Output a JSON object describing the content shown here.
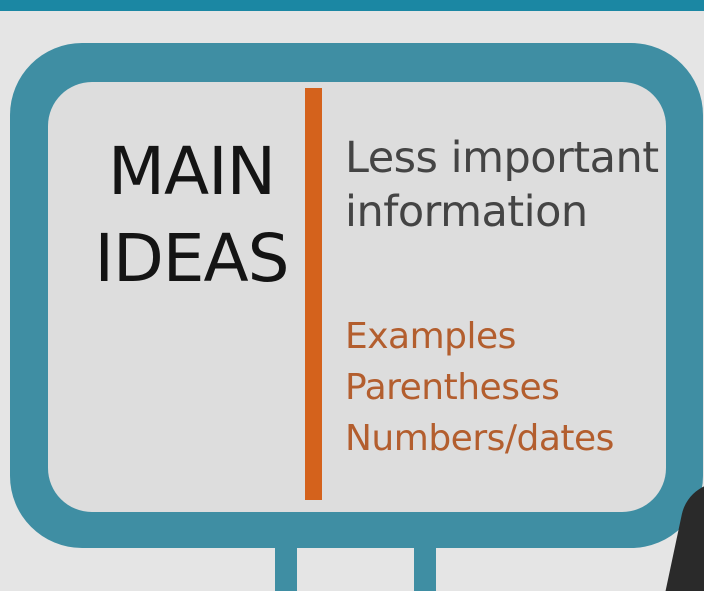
{
  "board": {
    "main_ideas": {
      "line1": "MAIN",
      "line2": "IDEAS"
    },
    "less_important": {
      "line1": "Less important",
      "line2": "information"
    },
    "details": [
      "Examples",
      "Parentheses",
      "Numbers/dates"
    ]
  },
  "colors": {
    "banner": "#1b87a3",
    "frame": "#3f8ea3",
    "panel": "#dddddd",
    "divider": "#d4621c",
    "main_text": "#141414",
    "secondary_text": "#444444",
    "detail_text": "#b35e2e"
  }
}
